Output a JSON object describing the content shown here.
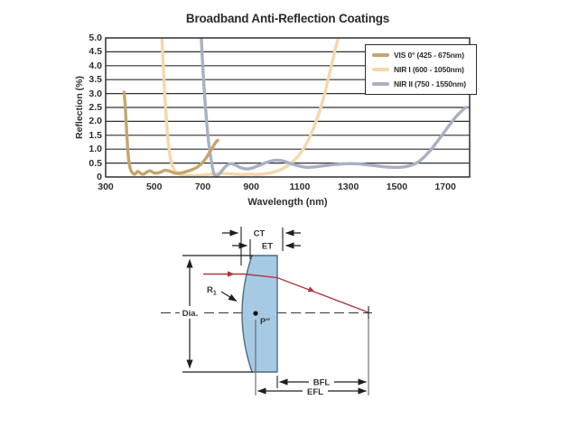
{
  "chart": {
    "title": "Broadband Anti-Reflection Coatings",
    "xlabel": "Wavelength (nm)",
    "ylabel": "Reflection (%)",
    "x_ticks": [
      "300",
      "500",
      "700",
      "900",
      "1100",
      "1300",
      "1500",
      "1700"
    ],
    "y_ticks": [
      "0",
      "0.5",
      "1.0",
      "1.5",
      "2.0",
      "2.5",
      "3.0",
      "3.5",
      "4.0",
      "4.5",
      "5.0"
    ],
    "frame_color": "#2f2f2f",
    "text_color": "#2e2e2e"
  },
  "chart_data": {
    "type": "line",
    "title": "Broadband Anti-Reflection Coatings",
    "xlabel": "Wavelength (nm)",
    "ylabel": "Reflection (%)",
    "xlim": [
      300,
      1800
    ],
    "ylim": [
      0,
      5
    ],
    "grid": "horizontal, every 0.5",
    "legend_position": "top-right",
    "series": [
      {
        "name": "VIS 0° (425 - 675nm)",
        "color": "#C6A56D",
        "points": [
          [
            376,
            3.05
          ],
          [
            381,
            2.5
          ],
          [
            386,
            1.7
          ],
          [
            391,
            1.0
          ],
          [
            396,
            0.55
          ],
          [
            402,
            0.28
          ],
          [
            410,
            0.15
          ],
          [
            420,
            0.1
          ],
          [
            432,
            0.2
          ],
          [
            444,
            0.13
          ],
          [
            456,
            0.1
          ],
          [
            470,
            0.18
          ],
          [
            484,
            0.22
          ],
          [
            498,
            0.15
          ],
          [
            512,
            0.14
          ],
          [
            528,
            0.18
          ],
          [
            544,
            0.24
          ],
          [
            560,
            0.22
          ],
          [
            578,
            0.16
          ],
          [
            596,
            0.13
          ],
          [
            615,
            0.15
          ],
          [
            635,
            0.2
          ],
          [
            655,
            0.26
          ],
          [
            675,
            0.34
          ],
          [
            695,
            0.48
          ],
          [
            712,
            0.66
          ],
          [
            728,
            0.88
          ],
          [
            742,
            1.08
          ],
          [
            754,
            1.25
          ],
          [
            762,
            1.32
          ]
        ]
      },
      {
        "name": "NIR I (600 - 1050nm)",
        "color": "#F4D7AA",
        "points": [
          [
            532,
            5.0
          ],
          [
            537,
            4.1
          ],
          [
            542,
            3.2
          ],
          [
            548,
            2.35
          ],
          [
            554,
            1.65
          ],
          [
            560,
            1.1
          ],
          [
            567,
            0.68
          ],
          [
            575,
            0.4
          ],
          [
            584,
            0.24
          ],
          [
            595,
            0.15
          ],
          [
            610,
            0.09
          ],
          [
            630,
            0.06
          ],
          [
            655,
            0.05
          ],
          [
            685,
            0.06
          ],
          [
            715,
            0.08
          ],
          [
            745,
            0.11
          ],
          [
            775,
            0.13
          ],
          [
            805,
            0.12
          ],
          [
            835,
            0.1
          ],
          [
            865,
            0.09
          ],
          [
            895,
            0.1
          ],
          [
            925,
            0.09
          ],
          [
            955,
            0.11
          ],
          [
            985,
            0.16
          ],
          [
            1015,
            0.24
          ],
          [
            1045,
            0.38
          ],
          [
            1075,
            0.58
          ],
          [
            1105,
            0.88
          ],
          [
            1135,
            1.32
          ],
          [
            1165,
            1.95
          ],
          [
            1195,
            2.75
          ],
          [
            1222,
            3.7
          ],
          [
            1245,
            4.55
          ],
          [
            1258,
            5.0
          ]
        ]
      },
      {
        "name": "NIR II (750 - 1550nm)",
        "color": "#A9B0C3",
        "points": [
          [
            694,
            5.0
          ],
          [
            699,
            4.15
          ],
          [
            705,
            3.3
          ],
          [
            711,
            2.55
          ],
          [
            717,
            1.9
          ],
          [
            723,
            1.35
          ],
          [
            730,
            0.88
          ],
          [
            737,
            0.5
          ],
          [
            744,
            0.18
          ],
          [
            751,
            0.04
          ],
          [
            760,
            0.05
          ],
          [
            773,
            0.16
          ],
          [
            788,
            0.32
          ],
          [
            803,
            0.44
          ],
          [
            818,
            0.48
          ],
          [
            835,
            0.43
          ],
          [
            855,
            0.34
          ],
          [
            878,
            0.29
          ],
          [
            903,
            0.32
          ],
          [
            930,
            0.41
          ],
          [
            958,
            0.51
          ],
          [
            985,
            0.58
          ],
          [
            1010,
            0.6
          ],
          [
            1038,
            0.56
          ],
          [
            1066,
            0.47
          ],
          [
            1095,
            0.4
          ],
          [
            1125,
            0.35
          ],
          [
            1158,
            0.36
          ],
          [
            1195,
            0.4
          ],
          [
            1235,
            0.44
          ],
          [
            1275,
            0.47
          ],
          [
            1315,
            0.48
          ],
          [
            1355,
            0.46
          ],
          [
            1395,
            0.42
          ],
          [
            1435,
            0.38
          ],
          [
            1475,
            0.35
          ],
          [
            1515,
            0.35
          ],
          [
            1550,
            0.4
          ],
          [
            1580,
            0.5
          ],
          [
            1608,
            0.68
          ],
          [
            1635,
            0.93
          ],
          [
            1662,
            1.22
          ],
          [
            1690,
            1.55
          ],
          [
            1718,
            1.88
          ],
          [
            1745,
            2.18
          ],
          [
            1768,
            2.38
          ],
          [
            1783,
            2.5
          ]
        ]
      }
    ]
  },
  "diagram": {
    "labels": {
      "ct": "CT",
      "et": "ET",
      "dia": "Dia.",
      "r1_base": "R",
      "r1_sub": "1",
      "principal_point": "P″",
      "bfl": "BFL",
      "efl": "EFL"
    },
    "lens_fill": "#A6CAE4",
    "lens_stroke": "#4E6A80",
    "ray_color": "#AF363C",
    "line_color": "#1f1f1f"
  }
}
